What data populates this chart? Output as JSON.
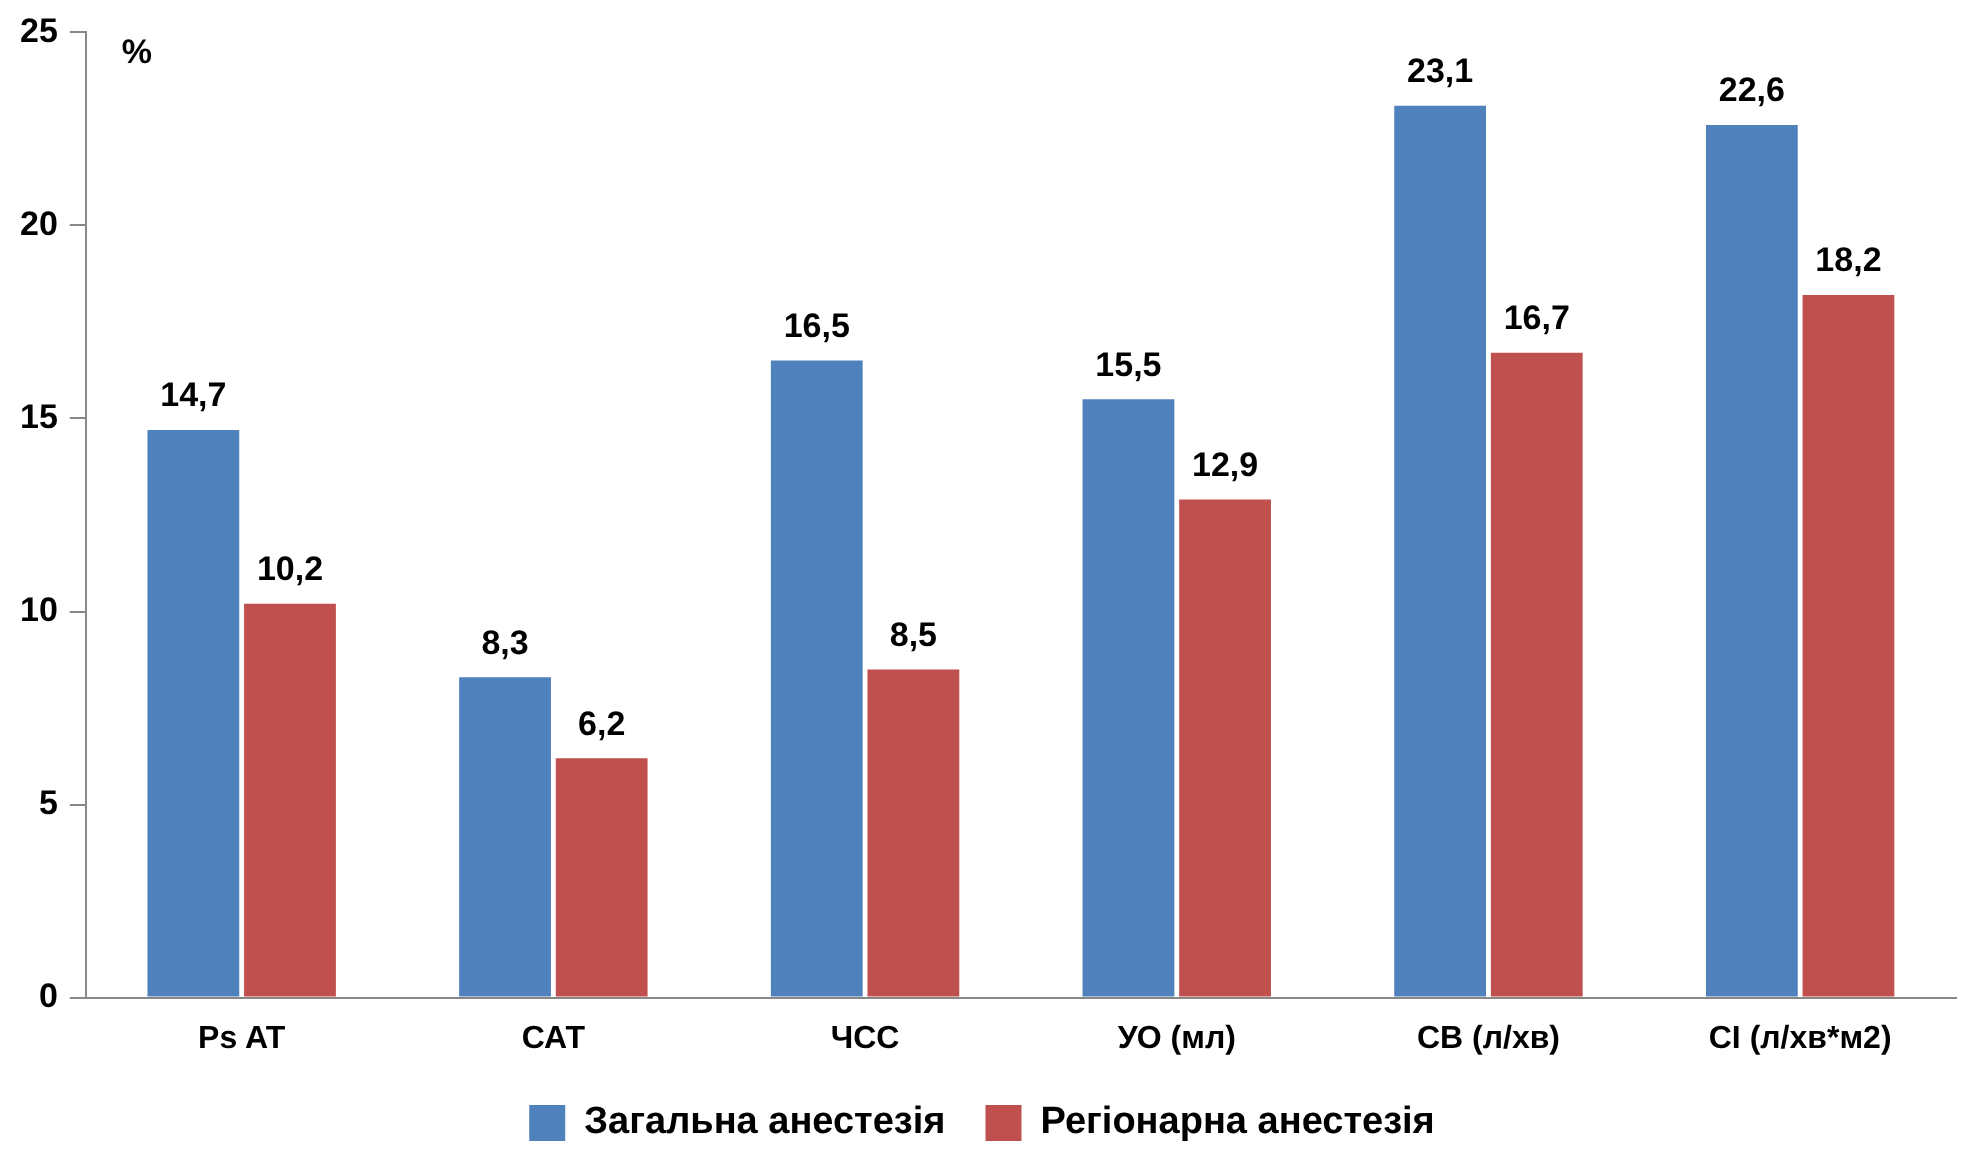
{
  "chart_data": {
    "type": "bar",
    "ylabel": "%",
    "categories": [
      "Ps AT",
      "САТ",
      "ЧСС",
      "УО (мл)",
      "СВ (л/хв)",
      "СІ (л/хв*м2)"
    ],
    "series": [
      {
        "name": "Загальна анестезія",
        "color": "#4f81bd",
        "values": [
          14.7,
          8.3,
          16.5,
          15.5,
          23.1,
          22.6
        ],
        "value_labels": [
          "14,7",
          "8,3",
          "16,5",
          "15,5",
          "23,1",
          "22,6"
        ]
      },
      {
        "name": "Регіонарна анестезія",
        "color": "#c0504d",
        "values": [
          10.2,
          6.2,
          8.5,
          12.9,
          16.7,
          18.2
        ],
        "value_labels": [
          "10,2",
          "6,2",
          "8,5",
          "12,9",
          "16,7",
          "18,2"
        ]
      }
    ],
    "ylim": [
      0,
      25
    ],
    "yticks": [
      0,
      5,
      10,
      15,
      20,
      25
    ],
    "grid": false,
    "legend": "bottom"
  }
}
